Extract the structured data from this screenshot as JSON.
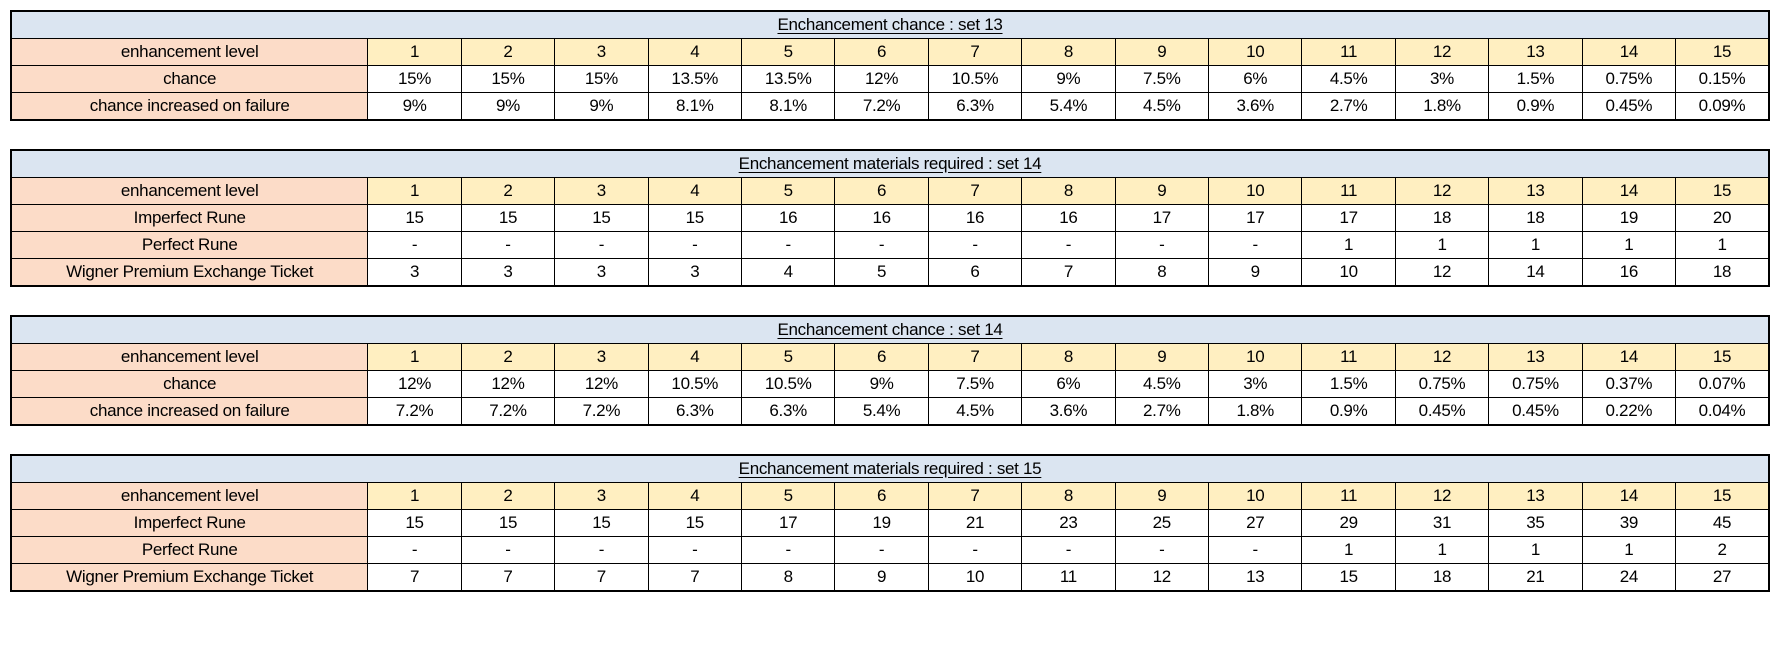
{
  "colors": {
    "title_bg": "#dbe5f1",
    "label_bg": "#fcdcc8",
    "level_bg": "#ffefc1",
    "value_bg": "#ffffff",
    "border": "#000000",
    "text": "#000000"
  },
  "tables": [
    {
      "name": "enchantment-chance-set-13",
      "title": "Enchancement chance : set 13",
      "header_label": "enhancement level",
      "levels": [
        "1",
        "2",
        "3",
        "4",
        "5",
        "6",
        "7",
        "8",
        "9",
        "10",
        "11",
        "12",
        "13",
        "14",
        "15"
      ],
      "rows": [
        {
          "label": "chance",
          "values": [
            "15%",
            "15%",
            "15%",
            "13.5%",
            "13.5%",
            "12%",
            "10.5%",
            "9%",
            "7.5%",
            "6%",
            "4.5%",
            "3%",
            "1.5%",
            "0.75%",
            "0.15%"
          ]
        },
        {
          "label": "chance increased on failure",
          "values": [
            "9%",
            "9%",
            "9%",
            "8.1%",
            "8.1%",
            "7.2%",
            "6.3%",
            "5.4%",
            "4.5%",
            "3.6%",
            "2.7%",
            "1.8%",
            "0.9%",
            "0.45%",
            "0.09%"
          ]
        }
      ]
    },
    {
      "name": "enchantment-materials-required-set-14",
      "title": "Enchancement materials required : set 14",
      "header_label": "enhancement level",
      "levels": [
        "1",
        "2",
        "3",
        "4",
        "5",
        "6",
        "7",
        "8",
        "9",
        "10",
        "11",
        "12",
        "13",
        "14",
        "15"
      ],
      "rows": [
        {
          "label": "Imperfect Rune",
          "values": [
            "15",
            "15",
            "15",
            "15",
            "16",
            "16",
            "16",
            "16",
            "17",
            "17",
            "17",
            "18",
            "18",
            "19",
            "20"
          ]
        },
        {
          "label": "Perfect Rune",
          "values": [
            "-",
            "-",
            "-",
            "-",
            "-",
            "-",
            "-",
            "-",
            "-",
            "-",
            "1",
            "1",
            "1",
            "1",
            "1"
          ]
        },
        {
          "label": "Wigner Premium Exchange Ticket",
          "values": [
            "3",
            "3",
            "3",
            "3",
            "4",
            "5",
            "6",
            "7",
            "8",
            "9",
            "10",
            "12",
            "14",
            "16",
            "18"
          ]
        }
      ]
    },
    {
      "name": "enchantment-chance-set-14",
      "title": "Enchancement chance : set 14",
      "header_label": "enhancement level",
      "levels": [
        "1",
        "2",
        "3",
        "4",
        "5",
        "6",
        "7",
        "8",
        "9",
        "10",
        "11",
        "12",
        "13",
        "14",
        "15"
      ],
      "rows": [
        {
          "label": "chance",
          "values": [
            "12%",
            "12%",
            "12%",
            "10.5%",
            "10.5%",
            "9%",
            "7.5%",
            "6%",
            "4.5%",
            "3%",
            "1.5%",
            "0.75%",
            "0.75%",
            "0.37%",
            "0.07%"
          ]
        },
        {
          "label": "chance increased on failure",
          "values": [
            "7.2%",
            "7.2%",
            "7.2%",
            "6.3%",
            "6.3%",
            "5.4%",
            "4.5%",
            "3.6%",
            "2.7%",
            "1.8%",
            "0.9%",
            "0.45%",
            "0.45%",
            "0.22%",
            "0.04%"
          ]
        }
      ]
    },
    {
      "name": "enchantment-materials-required-set-15",
      "title": "Enchancement materials required : set 15",
      "header_label": "enhancement level",
      "levels": [
        "1",
        "2",
        "3",
        "4",
        "5",
        "6",
        "7",
        "8",
        "9",
        "10",
        "11",
        "12",
        "13",
        "14",
        "15"
      ],
      "rows": [
        {
          "label": "Imperfect Rune",
          "values": [
            "15",
            "15",
            "15",
            "15",
            "17",
            "19",
            "21",
            "23",
            "25",
            "27",
            "29",
            "31",
            "35",
            "39",
            "45"
          ]
        },
        {
          "label": "Perfect Rune",
          "values": [
            "-",
            "-",
            "-",
            "-",
            "-",
            "-",
            "-",
            "-",
            "-",
            "-",
            "1",
            "1",
            "1",
            "1",
            "2"
          ]
        },
        {
          "label": "Wigner Premium Exchange Ticket",
          "values": [
            "7",
            "7",
            "7",
            "7",
            "8",
            "9",
            "10",
            "11",
            "12",
            "13",
            "15",
            "18",
            "21",
            "24",
            "27"
          ]
        }
      ]
    }
  ]
}
